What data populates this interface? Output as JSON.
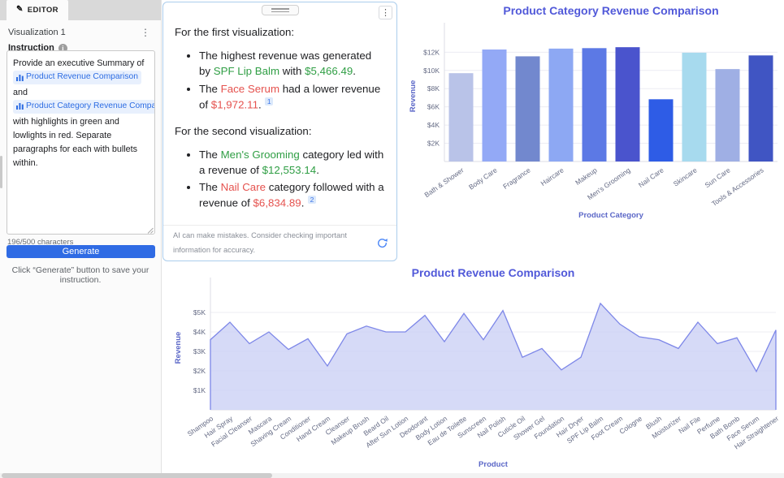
{
  "editor": {
    "tab_label": "EDITOR",
    "visualization_label": "Visualization 1",
    "instruction_label": "Instruction",
    "instruction_segments": [
      {
        "type": "text",
        "t": "Provide an executive Summary of "
      },
      {
        "type": "chip",
        "t": "Product Revenue Comparison"
      },
      {
        "type": "text",
        "t": " and "
      },
      {
        "type": "chip",
        "t": "Product Category Revenue Comparison"
      },
      {
        "type": "text",
        "t": " with highlights in green and lowlights in red. Separate paragraphs for each with bullets within."
      }
    ],
    "char_count": "196/500 characters",
    "generate_label": "Generate",
    "helper_text": "Click “Generate” button to save your instruction."
  },
  "summary_panel": {
    "sections": [
      {
        "heading": "For the first visualization:",
        "bullets": [
          {
            "segments": [
              {
                "t": "The highest revenue was generated by "
              },
              {
                "t": "SPF Lip Balm",
                "c": "green"
              },
              {
                "t": " with "
              },
              {
                "t": "$5,466.49",
                "c": "green"
              },
              {
                "t": "."
              }
            ]
          },
          {
            "segments": [
              {
                "t": "The "
              },
              {
                "t": "Face Serum",
                "c": "red"
              },
              {
                "t": " had a lower revenue of "
              },
              {
                "t": "$1,972.11",
                "c": "red"
              },
              {
                "t": ". "
              }
            ],
            "citation": "1"
          }
        ]
      },
      {
        "heading": "For the second visualization:",
        "bullets": [
          {
            "segments": [
              {
                "t": "The "
              },
              {
                "t": "Men's Grooming",
                "c": "green"
              },
              {
                "t": " category led with a revenue of "
              },
              {
                "t": "$12,553.14",
                "c": "green"
              },
              {
                "t": "."
              }
            ]
          },
          {
            "segments": [
              {
                "t": "The "
              },
              {
                "t": "Nail Care",
                "c": "red"
              },
              {
                "t": " category followed with a revenue of "
              },
              {
                "t": "$6,834.89",
                "c": "red"
              },
              {
                "t": ". "
              }
            ],
            "citation": "2"
          }
        ]
      }
    ],
    "footer_text": "AI can make mistakes. Consider checking important information for accuracy.",
    "highlight_color": "#2f9e44",
    "lowlight_color": "#e5524e",
    "citation_color": "#3b74e8"
  },
  "chart_data": [
    {
      "type": "bar",
      "title": "Product Category Revenue Comparison",
      "xlabel": "Product Category",
      "ylabel": "Revenue",
      "categories": [
        "Bath & Shower",
        "Body Care",
        "Fragrance",
        "Haircare",
        "Makeup",
        "Men's Grooming",
        "Nail Care",
        "Skincare",
        "Sun Care",
        "Tools & Accessories"
      ],
      "values": [
        9700,
        12300,
        11550,
        12400,
        12450,
        12553.14,
        6834.89,
        11950,
        10150,
        11650
      ],
      "bar_colors": [
        "#b9c3e8",
        "#93a9f6",
        "#7288ce",
        "#8da8f3",
        "#5c79e5",
        "#4a54cd",
        "#2e5ce6",
        "#a7daee",
        "#9fafe4",
        "#4055c3"
      ],
      "yticks": [
        2000,
        4000,
        6000,
        8000,
        10000,
        12000
      ],
      "ytick_labels": [
        "$2K",
        "$4K",
        "$6K",
        "$8K",
        "$10K",
        "$12K"
      ],
      "ylim": [
        0,
        14350
      ],
      "grid": true,
      "legend": "none",
      "title_color": "#5159d9",
      "axis_label_color": "#5b67c7",
      "tick_color": "#646a84"
    },
    {
      "type": "area",
      "title": "Product Revenue Comparison",
      "xlabel": "Product",
      "ylabel": "Revenue",
      "categories": [
        "Shampoo",
        "Hair Spray",
        "Facial Cleanser",
        "Mascara",
        "Shaving Cream",
        "Conditioner",
        "Hand Cream",
        "Cleanser",
        "Makeup Brush",
        "Beard Oil",
        "After Sun Lotion",
        "Deodorant",
        "Body Lotion",
        "Eau de Toilette",
        "Sunscreen",
        "Nail Polish",
        "Cuticle Oil",
        "Shower Gel",
        "Foundation",
        "Hair Dryer",
        "SPF Lip Balm",
        "Foot Cream",
        "Cologne",
        "Blush",
        "Moisturizer",
        "Nail File",
        "Perfume",
        "Bath Bomb",
        "Face Serum",
        "Hair Straightener"
      ],
      "values": [
        3600,
        4500,
        3400,
        4000,
        3100,
        3650,
        2250,
        3900,
        4300,
        4000,
        4000,
        4850,
        3500,
        4950,
        3600,
        5100,
        2700,
        3150,
        2050,
        2700,
        5466.49,
        4400,
        3750,
        3600,
        3150,
        4500,
        3400,
        3700,
        1972.11,
        4100
      ],
      "yticks": [
        1000,
        2000,
        3000,
        4000,
        5000
      ],
      "ytick_labels": [
        "$1K",
        "$2K",
        "$3K",
        "$4K",
        "$5K"
      ],
      "ylim": [
        0,
        6375
      ],
      "grid": true,
      "legend": "none",
      "line_color": "#7d87e8",
      "fill_color": "#cfd3f6",
      "title_color": "#5159d9",
      "axis_label_color": "#5b67c7",
      "tick_color": "#646a84"
    }
  ]
}
